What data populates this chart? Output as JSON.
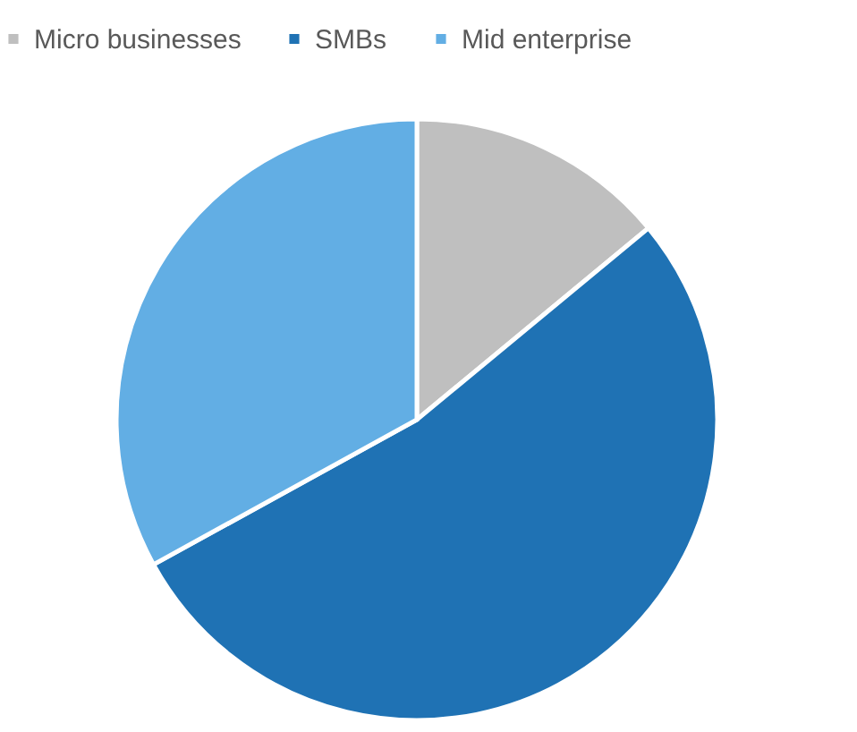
{
  "chart_data": {
    "type": "pie",
    "categories": [
      "Micro businesses",
      "SMBs",
      "Mid enterprise"
    ],
    "values": [
      14,
      53,
      33
    ],
    "colors": [
      "#bfbfbf",
      "#1f72b4",
      "#62aee4"
    ],
    "legend": "top"
  }
}
